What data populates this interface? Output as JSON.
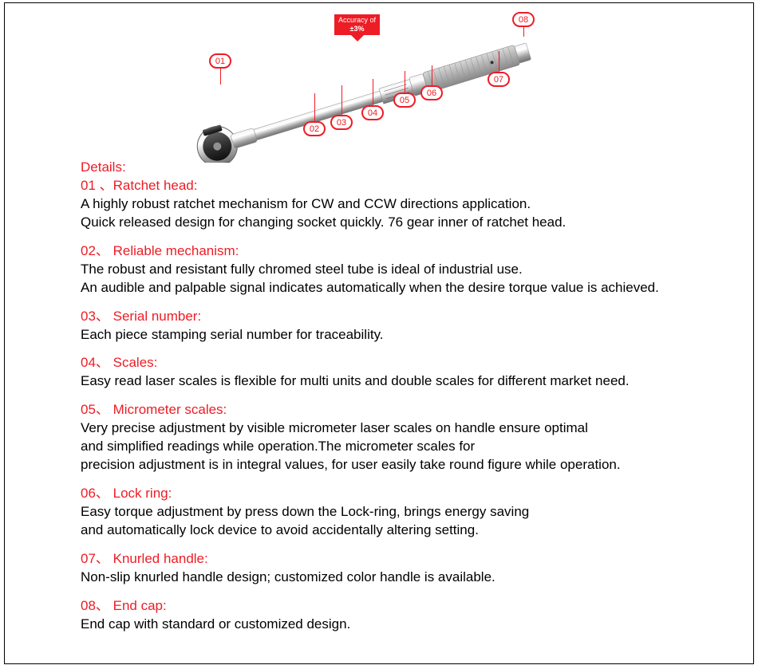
{
  "accuracy_badge": {
    "line1": "Accuracy of",
    "line2": "±3%"
  },
  "callouts": {
    "c01": "01",
    "c02": "02",
    "c03": "03",
    "c04": "04",
    "c05": "05",
    "c06": "06",
    "c07": "07",
    "c08": "08"
  },
  "colors": {
    "red": "#ee1c25",
    "black": "#000000",
    "white": "#ffffff",
    "metal_light": "#e8e8e8",
    "metal_mid": "#c0c0c0",
    "metal_dark": "#808080"
  },
  "details_title": "Details:",
  "items": [
    {
      "heading": "01 、Ratchet head:",
      "text": "A highly robust ratchet mechanism for CW and CCW directions application.\nQuick released design for changing socket quickly. 76 gear inner  of ratchet head."
    },
    {
      "heading": "02、 Reliable mechanism:",
      "text": "The robust and resistant fully chromed steel tube is ideal of industrial use.\nAn audible and palpable signal indicates automatically when the desire torque value is achieved."
    },
    {
      "heading": "03、 Serial number:",
      "text": "Each piece stamping serial number for traceability."
    },
    {
      "heading": "04、 Scales:",
      "text": "Easy read laser scales is flexible for multi units and double scales for different market need."
    },
    {
      "heading": "05、 Micrometer scales:",
      "text": "Very precise adjustment by visible micrometer laser scales on handle ensure optimal\nand simplified readings while operation.The micrometer scales for\nprecision adjustment is in integral values, for user easily take round figure while operation."
    },
    {
      "heading": "06、 Lock ring:",
      "text": "Easy torque adjustment by press down the Lock-ring, brings energy saving\nand automatically lock device to avoid accidentally altering setting."
    },
    {
      "heading": "07、 Knurled handle:",
      "text": "Non-slip knurled handle design; customized color handle is available."
    },
    {
      "heading": "08、 End cap:",
      "text": "End cap with standard or customized design."
    }
  ]
}
